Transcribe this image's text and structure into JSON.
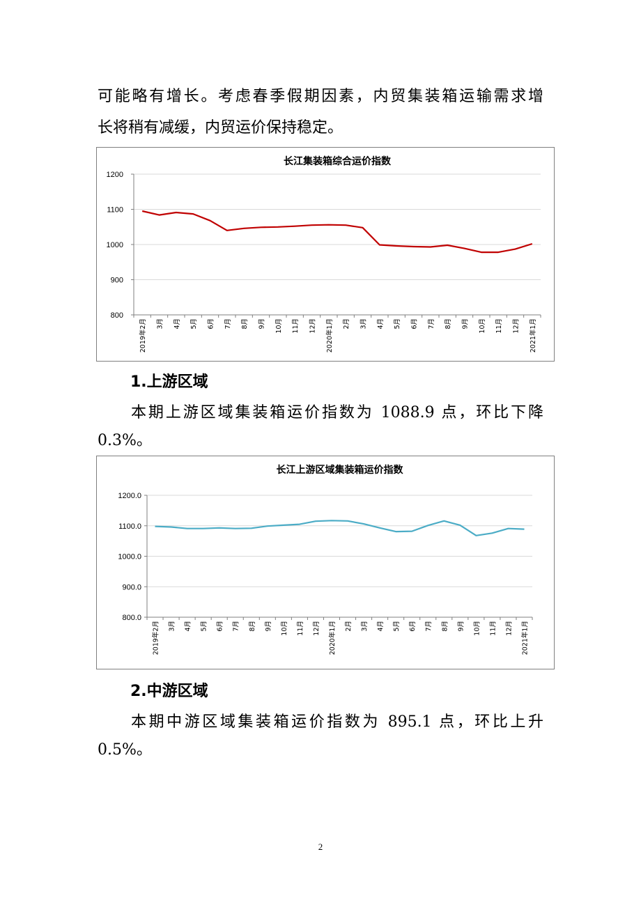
{
  "intro": {
    "line1": "可能略有增长。考虑春季假期因素，内贸集装箱运输需求增",
    "line2": "长将稍有减缓，内贸运价保持稳定。"
  },
  "section1": {
    "heading": "1.上游区域",
    "line1": "本期上游区域集装箱运价指数为 1088.9 点，环比下降",
    "line2": "0.3%。"
  },
  "section2": {
    "heading": "2.中游区域",
    "line1": "本期中游区域集装箱运价指数为 895.1 点，环比上升",
    "line2": "0.5%。"
  },
  "page_number": "2",
  "chart_data": [
    {
      "type": "line",
      "title": "长江集装箱综合运价指数",
      "categories": [
        "2019年2月",
        "3月",
        "4月",
        "5月",
        "6月",
        "7月",
        "8月",
        "9月",
        "10月",
        "11月",
        "12月",
        "2020年1月",
        "2月",
        "3月",
        "4月",
        "5月",
        "6月",
        "7月",
        "8月",
        "9月",
        "10月",
        "11月",
        "12月",
        "2021年1月"
      ],
      "y_ticks": [
        "800",
        "900",
        "1000",
        "1100",
        "1200"
      ],
      "ylim": [
        800,
        1200
      ],
      "series": [
        {
          "values": [
            1095,
            1084,
            1091,
            1087,
            1068,
            1040,
            1046,
            1049,
            1050,
            1052,
            1055,
            1056,
            1055,
            1048,
            999,
            996,
            994,
            993,
            998,
            989,
            978,
            978,
            987,
            1002
          ],
          "color": "#c00000"
        }
      ],
      "grid": true
    },
    {
      "type": "line",
      "title": "长江上游区域集装箱运价指数",
      "categories": [
        "2019年2月",
        "3月",
        "4月",
        "5月",
        "6月",
        "7月",
        "8月",
        "9月",
        "10月",
        "11月",
        "12月",
        "2020年1月",
        "2月",
        "3月",
        "4月",
        "5月",
        "6月",
        "7月",
        "8月",
        "9月",
        "10月",
        "11月",
        "12月",
        "2021年1月"
      ],
      "y_ticks": [
        "800.0",
        "900.0",
        "1000.0",
        "1100.0",
        "1200.0"
      ],
      "ylim": [
        800,
        1200
      ],
      "series": [
        {
          "values": [
            1098,
            1096,
            1091,
            1091,
            1093,
            1091,
            1092,
            1099,
            1102,
            1105,
            1115,
            1117,
            1116,
            1106,
            1093,
            1081,
            1082,
            1101,
            1116,
            1102,
            1068,
            1076,
            1091,
            1089
          ],
          "color": "#4bacc6"
        }
      ],
      "grid": true
    }
  ]
}
